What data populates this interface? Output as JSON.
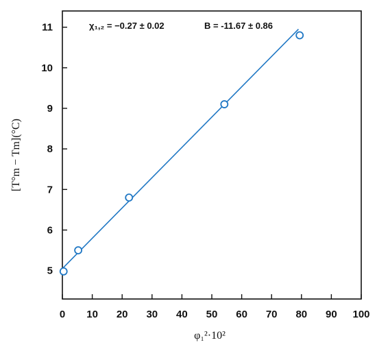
{
  "chart_data": {
    "type": "scatter",
    "xlabel": "φ₁²·10²",
    "ylabel": "[T°m − Tm](°C)",
    "xlim": [
      0,
      100
    ],
    "ylim": [
      4.3,
      11.4
    ],
    "x_ticks": [
      0,
      10,
      20,
      30,
      40,
      50,
      60,
      70,
      80,
      90,
      100
    ],
    "y_ticks": [
      5,
      6,
      7,
      8,
      9,
      10,
      11
    ],
    "grid": false,
    "annotations": {
      "chi": "χ₁,₂ = −0.27 ± 0.02",
      "b": "B = -11.67 ± 0.86"
    },
    "series": [
      {
        "kind": "points",
        "marker": "open-circle",
        "color": "#1f77c4",
        "x": [
          0.4,
          5.3,
          22.3,
          54.2,
          79.4
        ],
        "y": [
          4.98,
          5.5,
          6.8,
          9.1,
          10.8
        ]
      },
      {
        "kind": "fit-line",
        "color": "#1f77c4",
        "x": [
          0,
          79
        ],
        "y": [
          5.05,
          10.95
        ]
      }
    ]
  }
}
